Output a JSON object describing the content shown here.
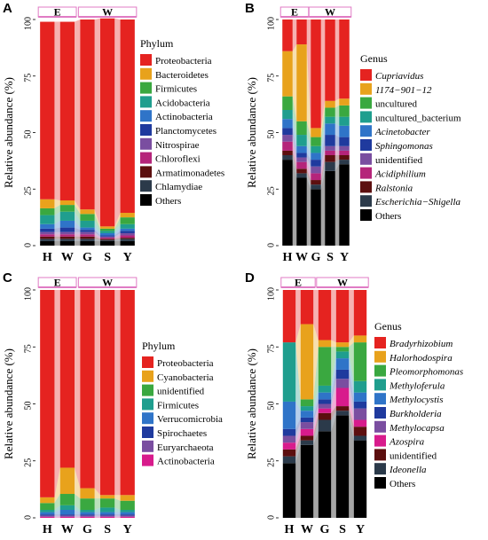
{
  "chart_data": [
    {
      "type": "bar",
      "panel": "A",
      "ylabel": "Relative abundance (%)",
      "ylim": [
        0,
        100
      ],
      "yticks": [
        "0",
        "25",
        "50",
        "75",
        "100"
      ],
      "categories": [
        "H",
        "W",
        "G",
        "S",
        "Y"
      ],
      "groups": [
        {
          "label": "E",
          "bars": [
            0,
            1
          ]
        },
        {
          "label": "W",
          "bars": [
            2,
            3,
            4
          ]
        }
      ],
      "legend_title": "Phylum",
      "legend_italic": false,
      "series": [
        {
          "name": "Others",
          "color": "#000000",
          "values": [
            2,
            2,
            2,
            2,
            2
          ]
        },
        {
          "name": "Chlamydiae",
          "color": "#2b3a4a",
          "values": [
            1,
            1,
            1,
            0.5,
            1
          ]
        },
        {
          "name": "Armatimonadetes",
          "color": "#5c0f0f",
          "values": [
            1,
            1,
            1,
            0.5,
            0.5
          ]
        },
        {
          "name": "Chloroflexi",
          "color": "#b5247a",
          "values": [
            1,
            1,
            1,
            0.5,
            1
          ]
        },
        {
          "name": "Nitrospirae",
          "color": "#7a4ea0",
          "values": [
            1,
            1,
            1,
            0.5,
            1
          ]
        },
        {
          "name": "Planctomycetes",
          "color": "#1f3a9e",
          "values": [
            1.5,
            2,
            1,
            0.5,
            1
          ]
        },
        {
          "name": "Actinobacteria",
          "color": "#2f74c8",
          "values": [
            2,
            3,
            1,
            1,
            1
          ]
        },
        {
          "name": "Acidobacteria",
          "color": "#1f9e8e",
          "values": [
            4,
            4,
            3,
            1,
            2
          ]
        },
        {
          "name": "Firmicutes",
          "color": "#3aa840",
          "values": [
            3,
            3,
            3,
            1,
            3
          ]
        },
        {
          "name": "Bacteroidetes",
          "color": "#e8a21c",
          "values": [
            4,
            2,
            2,
            1,
            2
          ]
        },
        {
          "name": "Proteobacteria",
          "color": "#e52320",
          "values": [
            78.5,
            79,
            84,
            92,
            85.5
          ]
        }
      ]
    },
    {
      "type": "bar",
      "panel": "B",
      "ylabel": "Relative abundance (%)",
      "ylim": [
        0,
        100
      ],
      "yticks": [
        "0",
        "25",
        "50",
        "75",
        "100"
      ],
      "categories": [
        "H",
        "W",
        "G",
        "S",
        "Y"
      ],
      "groups": [
        {
          "label": "E",
          "bars": [
            0,
            1
          ]
        },
        {
          "label": "W",
          "bars": [
            2,
            3,
            4
          ]
        }
      ],
      "legend_title": "Genus",
      "legend_italic": true,
      "series": [
        {
          "name": "Others",
          "color": "#000000",
          "values": [
            38,
            30,
            25,
            33,
            36
          ]
        },
        {
          "name": "Escherichia−Shigella",
          "color": "#2b3a4a",
          "values": [
            2,
            2,
            2,
            4,
            2
          ]
        },
        {
          "name": "Ralstonia",
          "color": "#5c0f0f",
          "values": [
            2,
            2,
            2,
            3,
            2
          ]
        },
        {
          "name": "Acidiphilium",
          "color": "#b5247a",
          "values": [
            4,
            3,
            3,
            2,
            2
          ]
        },
        {
          "name": "unidentified",
          "color": "#7a4ea0",
          "values": [
            3,
            2,
            3,
            2,
            2
          ]
        },
        {
          "name": "Sphingomonas",
          "color": "#1f3a9e",
          "values": [
            3,
            2,
            3,
            5,
            4
          ]
        },
        {
          "name": "Acinetobacter",
          "color": "#2f74c8",
          "values": [
            4,
            3,
            3,
            5,
            5
          ]
        },
        {
          "name": "uncultured_bacterium",
          "color": "#1f9e8e",
          "values": [
            4,
            5,
            3,
            3,
            4
          ]
        },
        {
          "name": "uncultured",
          "color": "#3aa840",
          "values": [
            6,
            6,
            4,
            4,
            5
          ]
        },
        {
          "name": "1174−901−12",
          "color": "#e8a21c",
          "values": [
            20,
            34,
            4,
            3,
            3
          ]
        },
        {
          "name": "Cupriavidus",
          "color": "#e52320",
          "values": [
            14,
            11,
            48,
            36,
            35
          ]
        }
      ]
    },
    {
      "type": "bar",
      "panel": "C",
      "ylabel": "Relative abundance (%)",
      "ylim": [
        0,
        100
      ],
      "yticks": [
        "0",
        "25",
        "50",
        "75",
        "100"
      ],
      "categories": [
        "H",
        "W",
        "G",
        "S",
        "Y"
      ],
      "groups": [
        {
          "label": "E",
          "bars": [
            0,
            1
          ]
        },
        {
          "label": "W",
          "bars": [
            2,
            3,
            4
          ]
        }
      ],
      "legend_title": "Phylum",
      "legend_italic": false,
      "series": [
        {
          "name": "Actinobacteria",
          "color": "#d81b8c",
          "values": [
            0.5,
            0.5,
            0.5,
            0.5,
            0.5
          ]
        },
        {
          "name": "Euryarchaeota",
          "color": "#7a4ea0",
          "values": [
            0.5,
            0.5,
            0.5,
            0.5,
            0.5
          ]
        },
        {
          "name": "Spirochaetes",
          "color": "#1f3a9e",
          "values": [
            0.5,
            0.5,
            0.5,
            0.5,
            0.5
          ]
        },
        {
          "name": "Verrucomicrobia",
          "color": "#2f74c8",
          "values": [
            1,
            2,
            1,
            1,
            1
          ]
        },
        {
          "name": "Firmicutes",
          "color": "#1f9e8e",
          "values": [
            1,
            2,
            1,
            2,
            1
          ]
        },
        {
          "name": "unidentified",
          "color": "#3aa840",
          "values": [
            3,
            5,
            5,
            4,
            4
          ]
        },
        {
          "name": "Cyanobacteria",
          "color": "#e8a21c",
          "values": [
            2.5,
            11.5,
            4.5,
            1.5,
            2.5
          ]
        },
        {
          "name": "Proteobacteria",
          "color": "#e52320",
          "values": [
            91,
            78,
            87,
            90,
            90
          ]
        }
      ]
    },
    {
      "type": "bar",
      "panel": "D",
      "ylabel": "Relative abundance (%)",
      "ylim": [
        0,
        100
      ],
      "yticks": [
        "0",
        "25",
        "50",
        "75",
        "100"
      ],
      "categories": [
        "H",
        "W",
        "G",
        "S",
        "Y"
      ],
      "groups": [
        {
          "label": "E",
          "bars": [
            0,
            1
          ]
        },
        {
          "label": "W",
          "bars": [
            2,
            3,
            4
          ]
        }
      ],
      "legend_title": "Genus",
      "legend_italic": true,
      "series": [
        {
          "name": "Others",
          "color": "#000000",
          "values": [
            24,
            32,
            38,
            45,
            34
          ]
        },
        {
          "name": "Ideonella",
          "color": "#2b3a4a",
          "values": [
            3,
            2,
            5,
            2,
            2
          ]
        },
        {
          "name": "unidentified",
          "color": "#5c0f0f",
          "values": [
            3,
            2,
            3,
            2,
            4
          ]
        },
        {
          "name": "Azospira",
          "color": "#d81b8c",
          "values": [
            3,
            3,
            2,
            8,
            3
          ]
        },
        {
          "name": "Methylocapsa",
          "color": "#7a4ea0",
          "values": [
            3,
            3,
            2,
            4,
            5
          ]
        },
        {
          "name": "Burkholderia",
          "color": "#1f3a9e",
          "values": [
            3,
            2,
            2,
            4,
            3
          ]
        },
        {
          "name": "Methylocystis",
          "color": "#2f74c8",
          "values": [
            12,
            3,
            3,
            5,
            4
          ]
        },
        {
          "name": "Methyloferula",
          "color": "#1f9e8e",
          "values": [
            26,
            2,
            3,
            3,
            5
          ]
        },
        {
          "name": "Pleomorphomonas",
          "color": "#3aa840",
          "values": [
            0,
            3,
            17,
            2,
            17
          ]
        },
        {
          "name": "Halorhodospira",
          "color": "#e8a21c",
          "values": [
            0,
            33,
            3,
            2,
            3
          ]
        },
        {
          "name": "Bradyrhizobium",
          "color": "#e52320",
          "values": [
            23,
            15,
            22,
            23,
            20
          ]
        }
      ]
    }
  ]
}
